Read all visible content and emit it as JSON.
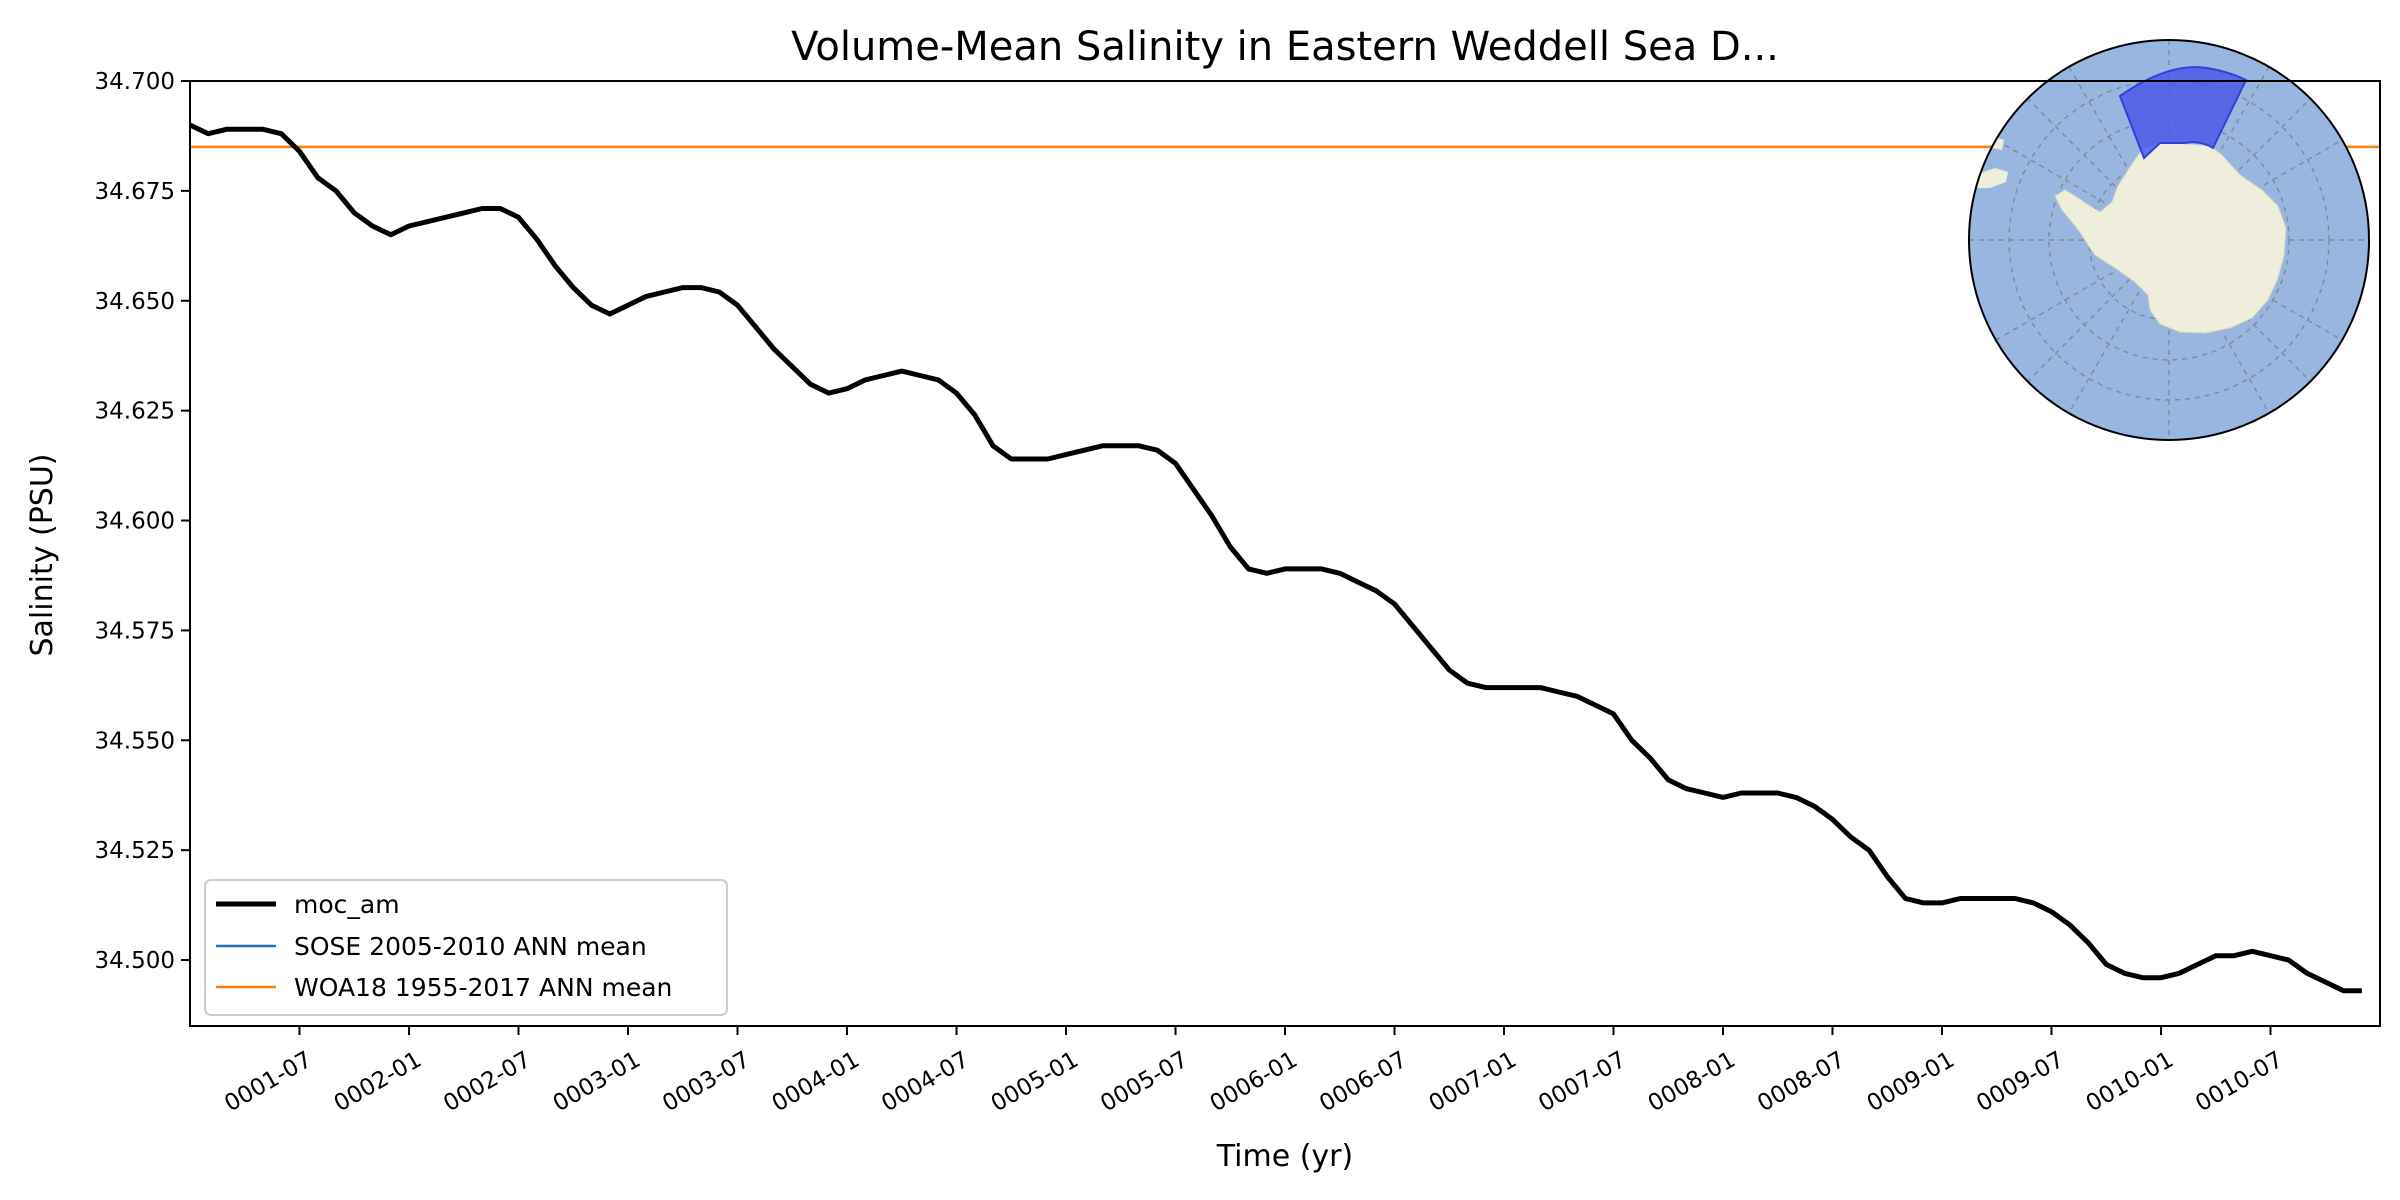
{
  "chart_data": {
    "type": "line",
    "title": "Volume-Mean Salinity in Eastern Weddell Sea D...",
    "xlabel": "Time (yr)",
    "ylabel": "Salinity (PSU)",
    "ylim": [
      34.485,
      34.7
    ],
    "yticks": [
      34.5,
      34.525,
      34.55,
      34.575,
      34.6,
      34.625,
      34.65,
      34.675,
      34.7
    ],
    "ytick_labels": [
      "34.500",
      "34.525",
      "34.550",
      "34.575",
      "34.600",
      "34.625",
      "34.650",
      "34.675",
      "34.700"
    ],
    "xlim": [
      "0001-01",
      "0011-01"
    ],
    "xtick_labels": [
      "0001-07",
      "0002-01",
      "0002-07",
      "0003-01",
      "0003-07",
      "0004-01",
      "0004-07",
      "0005-01",
      "0005-07",
      "0006-01",
      "0006-07",
      "0007-01",
      "0007-07",
      "0008-01",
      "0008-07",
      "0009-01",
      "0009-07",
      "0010-01",
      "0010-07"
    ],
    "grid": false,
    "legend_position": "lower-left",
    "series": [
      {
        "name": "moc_am",
        "color": "#000000",
        "x": [
          "0001-01",
          "0001-02",
          "0001-03",
          "0001-04",
          "0001-05",
          "0001-06",
          "0001-07",
          "0001-08",
          "0001-09",
          "0001-10",
          "0001-11",
          "0001-12",
          "0002-01",
          "0002-02",
          "0002-03",
          "0002-04",
          "0002-05",
          "0002-06",
          "0002-07",
          "0002-08",
          "0002-09",
          "0002-10",
          "0002-11",
          "0002-12",
          "0003-01",
          "0003-02",
          "0003-03",
          "0003-04",
          "0003-05",
          "0003-06",
          "0003-07",
          "0003-08",
          "0003-09",
          "0003-10",
          "0003-11",
          "0003-12",
          "0004-01",
          "0004-02",
          "0004-03",
          "0004-04",
          "0004-05",
          "0004-06",
          "0004-07",
          "0004-08",
          "0004-09",
          "0004-10",
          "0004-11",
          "0004-12",
          "0005-01",
          "0005-02",
          "0005-03",
          "0005-04",
          "0005-05",
          "0005-06",
          "0005-07",
          "0005-08",
          "0005-09",
          "0005-10",
          "0005-11",
          "0005-12",
          "0006-01",
          "0006-02",
          "0006-03",
          "0006-04",
          "0006-05",
          "0006-06",
          "0006-07",
          "0006-08",
          "0006-09",
          "0006-10",
          "0006-11",
          "0006-12",
          "0007-01",
          "0007-02",
          "0007-03",
          "0007-04",
          "0007-05",
          "0007-06",
          "0007-07",
          "0007-08",
          "0007-09",
          "0007-10",
          "0007-11",
          "0007-12",
          "0008-01",
          "0008-02",
          "0008-03",
          "0008-04",
          "0008-05",
          "0008-06",
          "0008-07",
          "0008-08",
          "0008-09",
          "0008-10",
          "0008-11",
          "0008-12",
          "0009-01",
          "0009-02",
          "0009-03",
          "0009-04",
          "0009-05",
          "0009-06",
          "0009-07",
          "0009-08",
          "0009-09",
          "0009-10",
          "0009-11",
          "0009-12",
          "0010-01",
          "0010-02",
          "0010-03",
          "0010-04",
          "0010-05",
          "0010-06",
          "0010-07",
          "0010-08",
          "0010-09",
          "0010-10",
          "0010-11",
          "0010-12"
        ],
        "values": [
          34.69,
          34.688,
          34.689,
          34.689,
          34.689,
          34.688,
          34.684,
          34.678,
          34.675,
          34.67,
          34.667,
          34.665,
          34.667,
          34.668,
          34.669,
          34.67,
          34.671,
          34.671,
          34.669,
          34.664,
          34.658,
          34.653,
          34.649,
          34.647,
          34.649,
          34.651,
          34.652,
          34.653,
          34.653,
          34.652,
          34.649,
          34.644,
          34.639,
          34.635,
          34.631,
          34.629,
          34.63,
          34.632,
          34.633,
          34.634,
          34.633,
          34.632,
          34.629,
          34.624,
          34.617,
          34.614,
          34.614,
          34.614,
          34.615,
          34.616,
          34.617,
          34.617,
          34.617,
          34.616,
          34.613,
          34.607,
          34.601,
          34.594,
          34.589,
          34.588,
          34.589,
          34.589,
          34.589,
          34.588,
          34.586,
          34.584,
          34.581,
          34.576,
          34.571,
          34.566,
          34.563,
          34.562,
          34.562,
          34.562,
          34.562,
          34.561,
          34.56,
          34.558,
          34.556,
          34.55,
          34.546,
          34.541,
          34.539,
          34.538,
          34.537,
          34.538,
          34.538,
          34.538,
          34.537,
          34.535,
          34.532,
          34.528,
          34.525,
          34.519,
          34.514,
          34.513,
          34.513,
          34.514,
          34.514,
          34.514,
          34.514,
          34.513,
          34.511,
          34.508,
          34.504,
          34.499,
          34.497,
          34.496,
          34.496,
          34.497,
          34.499,
          34.501,
          34.501,
          34.502,
          34.501,
          34.5,
          34.497,
          34.495,
          34.493,
          34.493
        ]
      },
      {
        "name": "SOSE 2005-2010 ANN mean",
        "color": "#1f77b4",
        "value": null
      },
      {
        "name": "WOA18 1955-2017 ANN mean",
        "color": "#ff7f0e",
        "value": 34.685
      }
    ],
    "inset_map": {
      "projection": "south-polar-stereographic",
      "ocean_color": "#98b6e0",
      "land_color": "#efeedd",
      "region_color": "#4a5be6",
      "region": "Eastern Weddell Sea sector"
    }
  }
}
